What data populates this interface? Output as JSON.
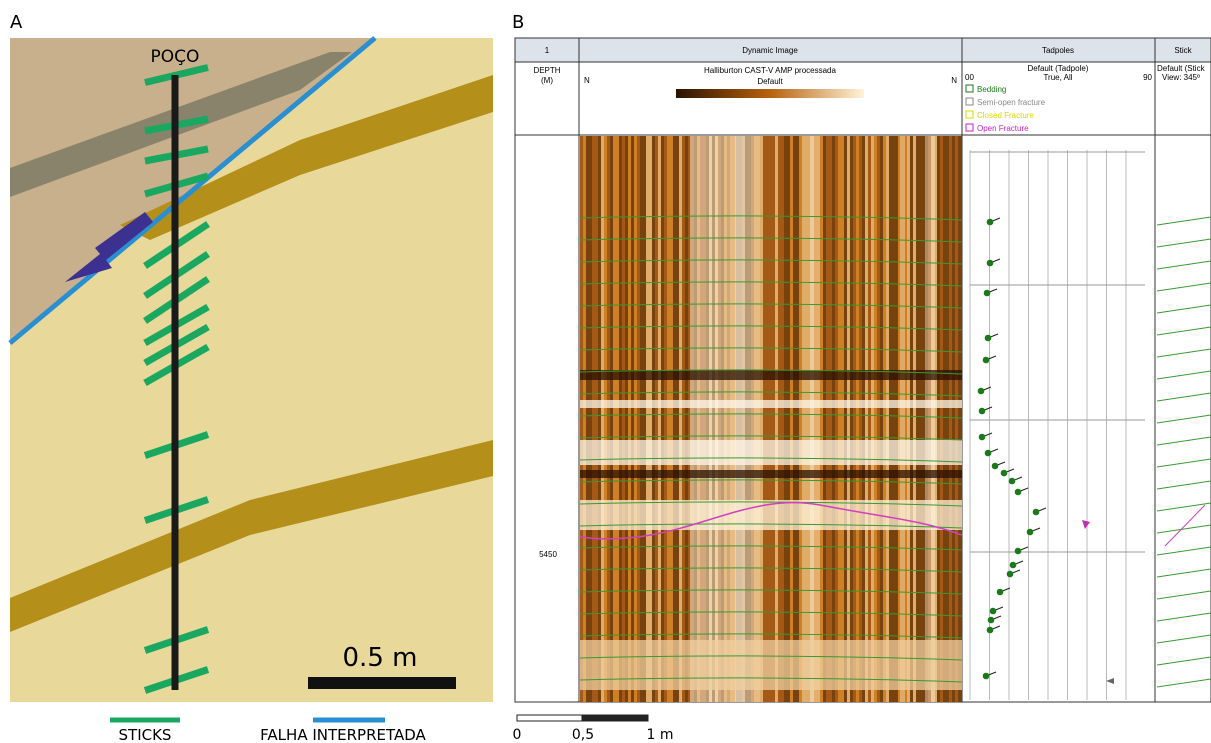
{
  "panel_a": {
    "label": "A",
    "well_label": "POÇO",
    "scale_label": "0.5 m",
    "legend": [
      "STICKS",
      "FALHA INTERPRETADA"
    ]
  },
  "panel_b": {
    "label": "B",
    "columns": [
      "1",
      "Dynamic Image",
      "Tadpoles",
      "Stick"
    ],
    "depth_header": [
      "DEPTH",
      "(M)"
    ],
    "image_north_left": "N",
    "image_north_right": "N",
    "image_title": "Halliburton CAST-V AMP processada",
    "image_palette": "Default",
    "tadpole_title": "Default (Tadpole)",
    "tadpole_min": "00",
    "tadpole_mode": "True, All",
    "tadpole_max": "90",
    "tadpole_legend": [
      "Bedding",
      "Semi-open fracture",
      "Closed Fracture",
      "Open Fracture"
    ],
    "stick_title": "Default (Stick",
    "stick_view": "View: 345º",
    "depth_label": "5450",
    "scale_labels": [
      "0",
      "0,5",
      "1 m"
    ]
  }
}
